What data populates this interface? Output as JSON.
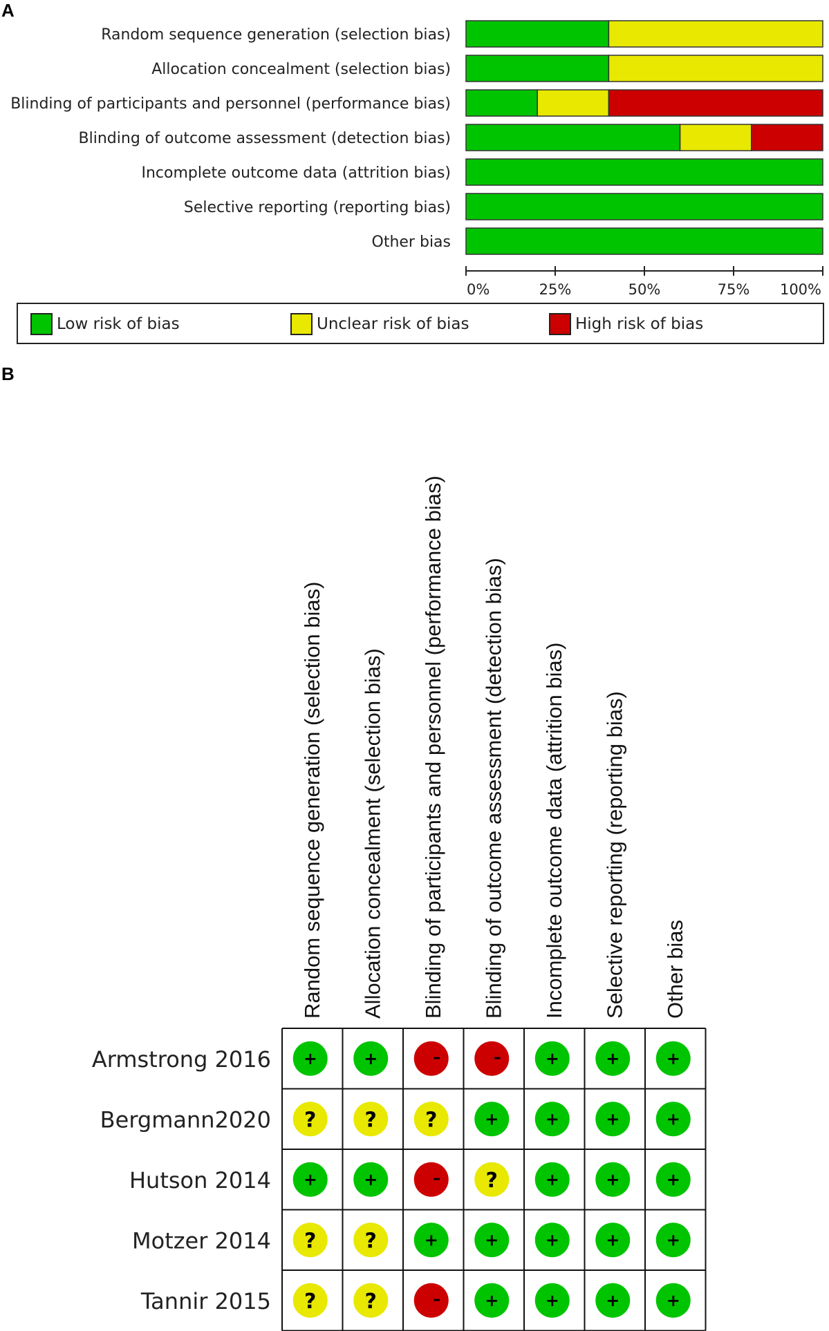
{
  "panels": {
    "a_label": "A",
    "b_label": "B"
  },
  "colors": {
    "low": "#00c400",
    "unclear": "#e8e800",
    "high": "#cc0000"
  },
  "legend": [
    {
      "key": "low",
      "label": "Low risk of bias"
    },
    {
      "key": "unclear",
      "label": "Unclear risk of bias"
    },
    {
      "key": "high",
      "label": "High risk of bias"
    }
  ],
  "chart_data": [
    {
      "type": "bar",
      "orientation": "horizontal",
      "stacked": true,
      "categories": [
        "Random sequence generation (selection bias)",
        "Allocation concealment (selection bias)",
        "Blinding of participants and personnel (performance bias)",
        "Blinding of outcome assessment (detection bias)",
        "Incomplete outcome data (attrition bias)",
        "Selective reporting (reporting bias)",
        "Other bias"
      ],
      "series": [
        {
          "name": "Low risk of bias",
          "color_key": "low",
          "values": [
            40,
            40,
            20,
            60,
            100,
            100,
            100
          ]
        },
        {
          "name": "Unclear risk of bias",
          "color_key": "unclear",
          "values": [
            60,
            60,
            20,
            20,
            0,
            0,
            0
          ]
        },
        {
          "name": "High risk of bias",
          "color_key": "high",
          "values": [
            0,
            0,
            60,
            20,
            0,
            0,
            0
          ]
        }
      ],
      "xlim": [
        0,
        100
      ],
      "xticks": [
        "0%",
        "25%",
        "50%",
        "75%",
        "100%"
      ],
      "legend_position": "bottom"
    },
    {
      "type": "table",
      "columns": [
        "Random sequence generation (selection bias)",
        "Allocation concealment (selection bias)",
        "Blinding of participants and personnel (performance bias)",
        "Blinding of outcome assessment (detection bias)",
        "Incomplete outcome data (attrition bias)",
        "Selective reporting (reporting bias)",
        "Other bias"
      ],
      "rows": [
        {
          "study": "Armstrong 2016",
          "values": [
            "low",
            "low",
            "high",
            "high",
            "low",
            "low",
            "low"
          ]
        },
        {
          "study": "Bergmann2020",
          "values": [
            "unclear",
            "unclear",
            "unclear",
            "low",
            "low",
            "low",
            "low"
          ]
        },
        {
          "study": "Hutson 2014",
          "values": [
            "low",
            "low",
            "high",
            "unclear",
            "low",
            "low",
            "low"
          ]
        },
        {
          "study": "Motzer 2014",
          "values": [
            "unclear",
            "unclear",
            "low",
            "low",
            "low",
            "low",
            "low"
          ]
        },
        {
          "study": "Tannir 2015",
          "values": [
            "unclear",
            "unclear",
            "high",
            "low",
            "low",
            "low",
            "low"
          ]
        }
      ],
      "symbols": {
        "low": "+",
        "unclear": "?",
        "high": "–"
      }
    }
  ]
}
